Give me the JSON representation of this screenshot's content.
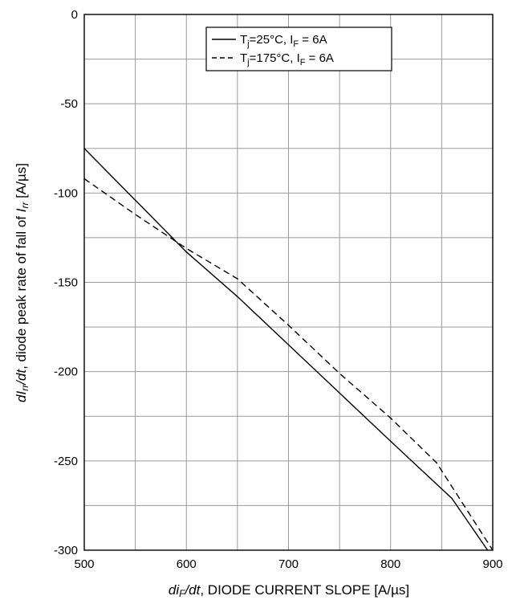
{
  "chart_data": {
    "type": "line",
    "xlim": [
      500,
      900
    ],
    "ylim": [
      -300,
      0
    ],
    "x_major_ticks": [
      500,
      600,
      700,
      800,
      900
    ],
    "y_major_ticks": [
      0,
      -50,
      -100,
      -150,
      -200,
      -250,
      -300
    ],
    "x_grid": [
      500,
      550,
      600,
      650,
      700,
      750,
      800,
      850,
      900
    ],
    "y_grid": [
      0,
      -25,
      -50,
      -75,
      -100,
      -125,
      -150,
      -175,
      -200,
      -225,
      -250,
      -275,
      -300
    ],
    "grid": true,
    "legend_position": "top-right",
    "xlabel": {
      "var_main": "di",
      "var_sub": "F",
      "var_tail": "/dt",
      "rest": ", DIODE CURRENT SLOPE [A/µs]"
    },
    "ylabel": {
      "var_main": "dI",
      "var_sub": "rr",
      "var_tail": "/dt",
      "mid": ", diode peak rate of fall of ",
      "var2_main": "I",
      "var2_sub": "rr",
      "rest": " [A/µs]"
    },
    "series": [
      {
        "line_style": "solid",
        "legend": {
          "t": "T",
          "t_sub": "j",
          "mid": "=25°C, I",
          "i_sub": "F",
          "rest": " = 6A"
        },
        "x": [
          500,
          550,
          600,
          650,
          700,
          750,
          800,
          860,
          895
        ],
        "y": [
          -75,
          -104,
          -133,
          -158,
          -185,
          -212,
          -239,
          -271,
          -300
        ]
      },
      {
        "line_style": "dashed",
        "legend": {
          "t": "T",
          "t_sub": "j",
          "mid": "=175°C, I",
          "i_sub": "F",
          "rest": " = 6A"
        },
        "x": [
          500,
          550,
          600,
          650,
          700,
          750,
          800,
          845,
          900
        ],
        "y": [
          -92,
          -112,
          -131,
          -148,
          -174,
          -201,
          -226,
          -251,
          -300
        ]
      }
    ]
  }
}
